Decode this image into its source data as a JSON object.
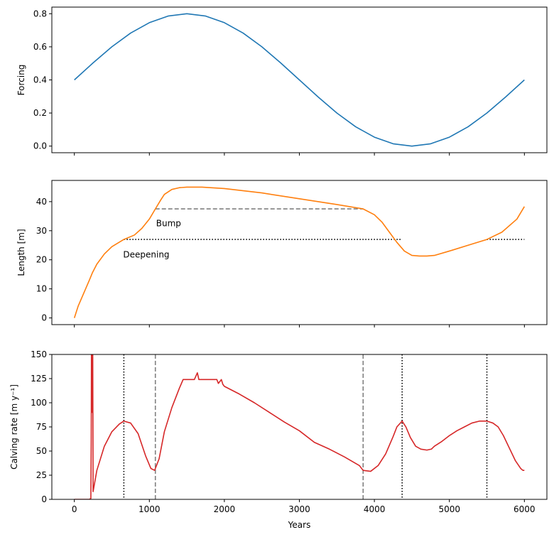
{
  "chart_data": [
    {
      "type": "line",
      "ylabel": "Forcing",
      "xlim": [
        -300,
        6300
      ],
      "ylim": [
        -0.04,
        0.84
      ],
      "yticks": [
        0.0,
        0.2,
        0.4,
        0.6,
        0.8
      ],
      "ytick_labels": [
        "0.0",
        "0.2",
        "0.4",
        "0.6",
        "0.8"
      ],
      "series": [
        {
          "name": "Forcing",
          "color": "#1f77b4",
          "x": [
            0,
            250,
            500,
            750,
            1000,
            1250,
            1500,
            1750,
            2000,
            2250,
            2500,
            2750,
            3000,
            3250,
            3500,
            3750,
            4000,
            4250,
            4500,
            4750,
            5000,
            5250,
            5500,
            5750,
            6000
          ],
          "y": [
            0.4,
            0.503,
            0.6,
            0.683,
            0.746,
            0.786,
            0.8,
            0.786,
            0.746,
            0.683,
            0.6,
            0.503,
            0.4,
            0.297,
            0.2,
            0.117,
            0.054,
            0.014,
            0.0,
            0.014,
            0.054,
            0.117,
            0.2,
            0.297,
            0.4
          ]
        }
      ]
    },
    {
      "type": "line",
      "ylabel": "Length [m]",
      "xlim": [
        -300,
        6300
      ],
      "ylim": [
        -2.3,
        47.3
      ],
      "yticks": [
        0,
        10,
        20,
        30,
        40
      ],
      "ytick_labels": [
        "0",
        "10",
        "20",
        "30",
        "40"
      ],
      "series": [
        {
          "name": "Length",
          "color": "#ff7f0e",
          "x": [
            0,
            50,
            100,
            200,
            240,
            300,
            400,
            500,
            660,
            800,
            900,
            1000,
            1080,
            1150,
            1200,
            1300,
            1400,
            1500,
            1700,
            2000,
            2500,
            3000,
            3500,
            3850,
            4000,
            4100,
            4200,
            4300,
            4400,
            4500,
            4600,
            4700,
            4800,
            5000,
            5250,
            5500,
            5700,
            5900,
            6000
          ],
          "y": [
            0,
            4,
            7,
            13,
            15.5,
            18.5,
            22,
            24.5,
            27,
            28.5,
            30.8,
            34,
            37.5,
            40.5,
            42.5,
            44.2,
            44.8,
            45,
            45,
            44.5,
            43,
            41,
            39,
            37.5,
            35.5,
            33,
            29.5,
            26,
            23,
            21.5,
            21.3,
            21.3,
            21.5,
            23,
            25,
            27,
            29.5,
            34,
            38.3
          ]
        }
      ],
      "reference_lines": [
        {
          "name": "Bump",
          "style": "dashed",
          "color": "#808080",
          "y": 37.5,
          "x_start": 1080,
          "x_end": 3850
        },
        {
          "name": "Deepening",
          "style": "dotted",
          "color": "#000000",
          "y": 27,
          "x_start": 660,
          "x_end": 4370
        },
        {
          "name": "Deepening",
          "style": "dotted",
          "color": "#000000",
          "y": 27,
          "x_start": 5500,
          "x_end": 6000
        }
      ],
      "annotations": [
        {
          "text": "Bump",
          "x": 1080,
          "y": 32.5
        },
        {
          "text": "Deepening",
          "x": 660,
          "y": 21.8
        }
      ]
    },
    {
      "type": "line",
      "ylabel": "Calving rate [m y⁻¹]",
      "xlabel": "Years",
      "xlim": [
        -300,
        6300
      ],
      "ylim": [
        0,
        150
      ],
      "yticks": [
        0,
        25,
        50,
        75,
        100,
        125,
        150
      ],
      "ytick_labels": [
        "0",
        "25",
        "50",
        "75",
        "100",
        "125",
        "150"
      ],
      "xticks": [
        0,
        1000,
        2000,
        3000,
        4000,
        5000,
        6000
      ],
      "xtick_labels": [
        "0",
        "1000",
        "2000",
        "3000",
        "4000",
        "5000",
        "6000"
      ],
      "series": [
        {
          "name": "Calving rate",
          "color": "#d62728",
          "x": [
            0,
            200,
            220,
            225,
            228,
            232,
            236,
            240,
            245,
            250,
            300,
            400,
            500,
            600,
            660,
            750,
            850,
            950,
            1020,
            1070,
            1130,
            1200,
            1300,
            1400,
            1450,
            1600,
            1640,
            1660,
            1700,
            1900,
            1920,
            1960,
            1980,
            2000,
            2200,
            2400,
            2600,
            2800,
            3000,
            3200,
            3400,
            3600,
            3800,
            3850,
            3950,
            4050,
            4150,
            4250,
            4300,
            4370,
            4420,
            4480,
            4550,
            4620,
            4700,
            4760,
            4800,
            4900,
            5000,
            5100,
            5200,
            5300,
            5400,
            5500,
            5580,
            5650,
            5720,
            5800,
            5880,
            5950,
            5980,
            6000
          ],
          "y": [
            0,
            0,
            1,
            60,
            150,
            150,
            90,
            150,
            150,
            8,
            30,
            55,
            70,
            78,
            81,
            79,
            68,
            45,
            32,
            30,
            42,
            70,
            95,
            115,
            124,
            124,
            131,
            124,
            124,
            124,
            120,
            124,
            119,
            117,
            109,
            100,
            90,
            80,
            71,
            59,
            52,
            44,
            35,
            30,
            29,
            35,
            47,
            65,
            75,
            81,
            75,
            64,
            55,
            52,
            51,
            52,
            55,
            60,
            66,
            71,
            75,
            79,
            81,
            81,
            79,
            75,
            66,
            53,
            40,
            32,
            30,
            30
          ]
        }
      ],
      "reference_vlines": [
        {
          "style": "dotted",
          "color": "#000000",
          "x": 660
        },
        {
          "style": "dashed",
          "color": "#808080",
          "x": 1080
        },
        {
          "style": "dashed",
          "color": "#808080",
          "x": 3850
        },
        {
          "style": "dotted",
          "color": "#000000",
          "x": 4370
        },
        {
          "style": "dotted",
          "color": "#000000",
          "x": 5500
        }
      ]
    }
  ]
}
